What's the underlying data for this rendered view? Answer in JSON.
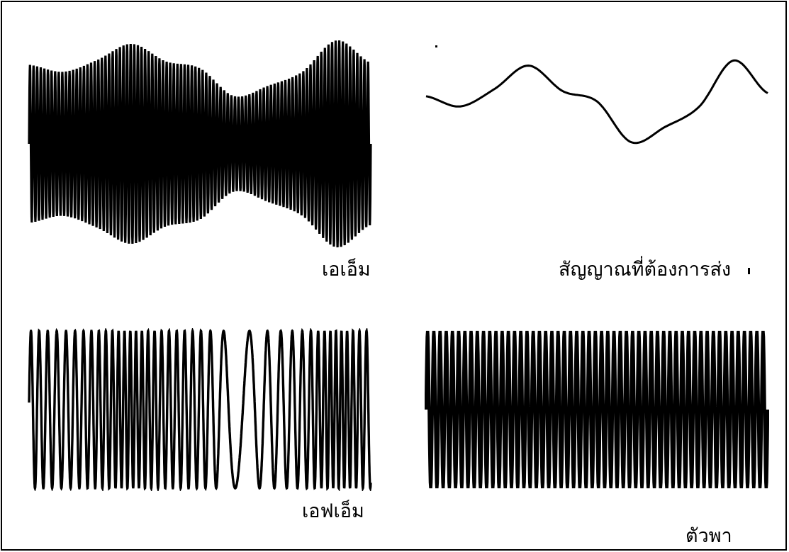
{
  "labels": {
    "am": "เอเอ็ม",
    "message": "สัญญาณที่ต้องการส่ง",
    "fm": "เอฟเอ็ม",
    "carrier": "ตัวพา"
  },
  "colors": {
    "ink": "#000000",
    "background": "#ffffff"
  },
  "signals": {
    "carrier_cycles": 55,
    "message_shape": [
      0.55,
      0.45,
      0.62,
      0.85,
      0.6,
      0.5,
      0.1,
      0.25,
      0.45,
      0.9,
      0.58
    ],
    "am_cycles": 95,
    "fm_base_cycles": 40
  }
}
